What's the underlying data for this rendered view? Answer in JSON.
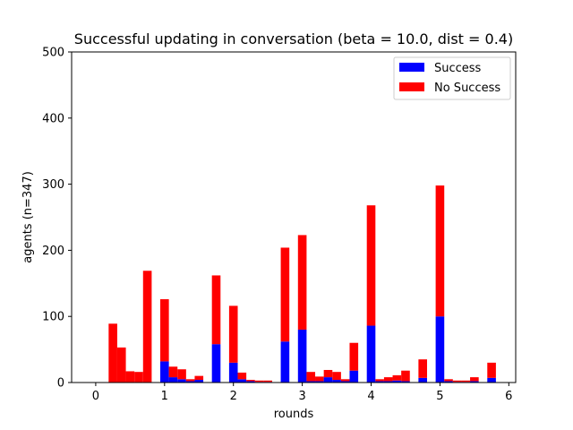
{
  "chart_data": {
    "type": "bar",
    "stacked": true,
    "title": "Successful updating in conversation (beta = 10.0, dist = 0.4)",
    "xlabel": "rounds",
    "ylabel": "agents (n=347)",
    "xlim": [
      -0.35,
      6.1
    ],
    "ylim": [
      0,
      500
    ],
    "xticks": [
      0,
      1,
      2,
      3,
      4,
      5,
      6
    ],
    "yticks": [
      0,
      100,
      200,
      300,
      400,
      500
    ],
    "bar_width": 0.125,
    "legend_position": "upper right",
    "colors": {
      "success": "#0000ff",
      "no_success": "#ff0000"
    },
    "x": [
      0.25,
      0.375,
      0.5,
      0.625,
      0.75,
      1.0,
      1.125,
      1.25,
      1.375,
      1.5,
      1.75,
      2.0,
      2.125,
      2.25,
      2.375,
      2.5,
      2.75,
      3.0,
      3.125,
      3.25,
      3.375,
      3.5,
      3.625,
      3.75,
      4.0,
      4.125,
      4.25,
      4.375,
      4.5,
      4.75,
      5.0,
      5.125,
      5.25,
      5.375,
      5.5,
      5.75
    ],
    "series": [
      {
        "name": "Success",
        "values": [
          0,
          0,
          0,
          0,
          0,
          32,
          8,
          5,
          2,
          4,
          58,
          30,
          5,
          2,
          1,
          1,
          62,
          80,
          2,
          2,
          8,
          4,
          2,
          18,
          86,
          2,
          2,
          3,
          2,
          7,
          100,
          2,
          1,
          1,
          2,
          7
        ]
      },
      {
        "name": "No Success",
        "values": [
          89,
          53,
          17,
          16,
          169,
          94,
          16,
          15,
          3,
          6,
          104,
          86,
          10,
          2,
          2,
          2,
          142,
          143,
          14,
          7,
          11,
          12,
          3,
          42,
          182,
          3,
          6,
          8,
          16,
          28,
          198,
          3,
          2,
          2,
          6,
          23
        ]
      }
    ]
  }
}
